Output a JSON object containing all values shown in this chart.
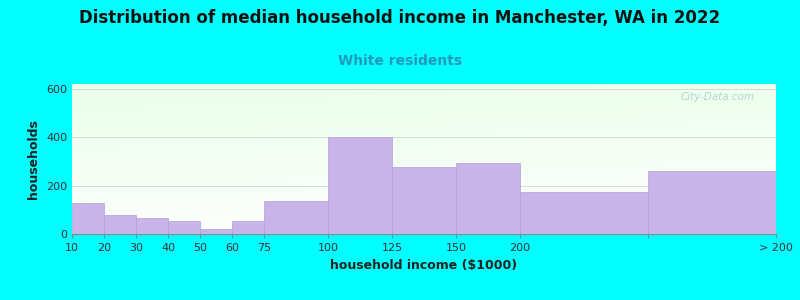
{
  "title": "Distribution of median household income in Manchester, WA in 2022",
  "subtitle": "White residents",
  "xlabel": "household income ($1000)",
  "ylabel": "households",
  "background_color": "#00FFFF",
  "bar_color": "#c8b4e8",
  "bar_edge_color": "#b0a0d8",
  "categories": [
    "10",
    "20",
    "30",
    "40",
    "50",
    "60",
    "75",
    "100",
    "125",
    "150",
    "200",
    "> 200"
  ],
  "values": [
    130,
    80,
    65,
    55,
    20,
    55,
    135,
    400,
    275,
    295,
    175,
    260
  ],
  "ylim": [
    0,
    620
  ],
  "yticks": [
    0,
    200,
    400,
    600
  ],
  "title_fontsize": 12,
  "subtitle_fontsize": 10,
  "subtitle_color": "#2299bb",
  "axis_label_fontsize": 9,
  "tick_fontsize": 8,
  "watermark_text": "City-Data.com",
  "watermark_color": "#aec6cf"
}
